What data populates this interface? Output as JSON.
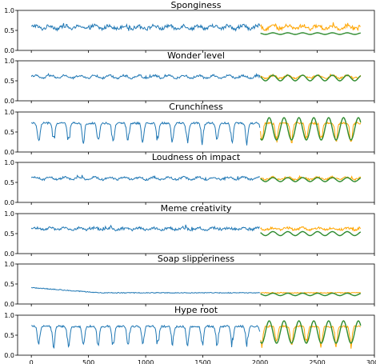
{
  "figure": {
    "type": "multi-panel time series forecast",
    "colors": {
      "observed": "#1f77b4",
      "actual": "#ffa500",
      "forecast": "#2e8b2e"
    }
  },
  "chart_data": [
    {
      "type": "line",
      "title": "Sponginess",
      "yticks": [
        "0.0",
        "0.5",
        "1.0"
      ],
      "ylim": [
        0,
        1.0
      ],
      "base": 0.58,
      "amp": 0.08,
      "noise": 0.09,
      "spike": 0.18,
      "fc_level": 0.42,
      "fc_amp": 0.02,
      "xlim": [
        -120,
        3000
      ],
      "xticks": []
    },
    {
      "type": "line",
      "title": "Wonder level",
      "yticks": [
        "0.0",
        "0.5",
        "1.0"
      ],
      "ylim": [
        0,
        1.0
      ],
      "base": 0.6,
      "amp": 0.07,
      "noise": 0.05,
      "spike": 0.08,
      "fc_level": 0.57,
      "fc_amp": 0.07,
      "xlim": [
        -120,
        3000
      ],
      "xticks": []
    },
    {
      "type": "line",
      "title": "Crunchiness",
      "yticks": [
        "0.0",
        "0.5",
        "1.0"
      ],
      "ylim": [
        0,
        1.0
      ],
      "base": 0.72,
      "amp": 0.3,
      "noise": 0.05,
      "spike": 0.05,
      "fc_level": 0.58,
      "fc_amp": 0.28,
      "xlim": [
        -120,
        3000
      ],
      "xticks": []
    },
    {
      "type": "line",
      "title": "Loudness on impact",
      "yticks": [
        "0.0",
        "0.5",
        "1.0"
      ],
      "ylim": [
        0,
        1.0
      ],
      "base": 0.6,
      "amp": 0.06,
      "noise": 0.05,
      "spike": 0.08,
      "fc_level": 0.57,
      "fc_amp": 0.05,
      "xlim": [
        -120,
        3000
      ],
      "xticks": []
    },
    {
      "type": "line",
      "title": "Meme creativity",
      "yticks": [
        "0.0",
        "0.5",
        "1.0"
      ],
      "ylim": [
        0,
        1.0
      ],
      "base": 0.62,
      "amp": 0.05,
      "noise": 0.06,
      "spike": 0.12,
      "fc_level": 0.5,
      "fc_amp": 0.05,
      "xlim": [
        -120,
        3000
      ],
      "xticks": []
    },
    {
      "type": "line",
      "title": "Soap slipperiness",
      "yticks": [
        "0.0",
        "0.5",
        "1.0"
      ],
      "ylim": [
        0,
        1.0
      ],
      "base": 0.28,
      "amp": 0.02,
      "noise": 0.02,
      "spike": 0.03,
      "fc_level": 0.24,
      "fc_amp": 0.03,
      "xlim": [
        -120,
        3000
      ],
      "xticks": []
    },
    {
      "type": "line",
      "title": "Hype root",
      "yticks": [
        "0.0",
        "0.5",
        "1.0"
      ],
      "ylim": [
        0,
        1.0
      ],
      "base": 0.72,
      "amp": 0.3,
      "noise": 0.05,
      "spike": 0.05,
      "fc_level": 0.58,
      "fc_amp": 0.28,
      "xlim": [
        -120,
        3000
      ],
      "xticks": [
        "0",
        "500",
        "1000",
        "1500",
        "2000",
        "2500",
        "3000"
      ]
    }
  ]
}
